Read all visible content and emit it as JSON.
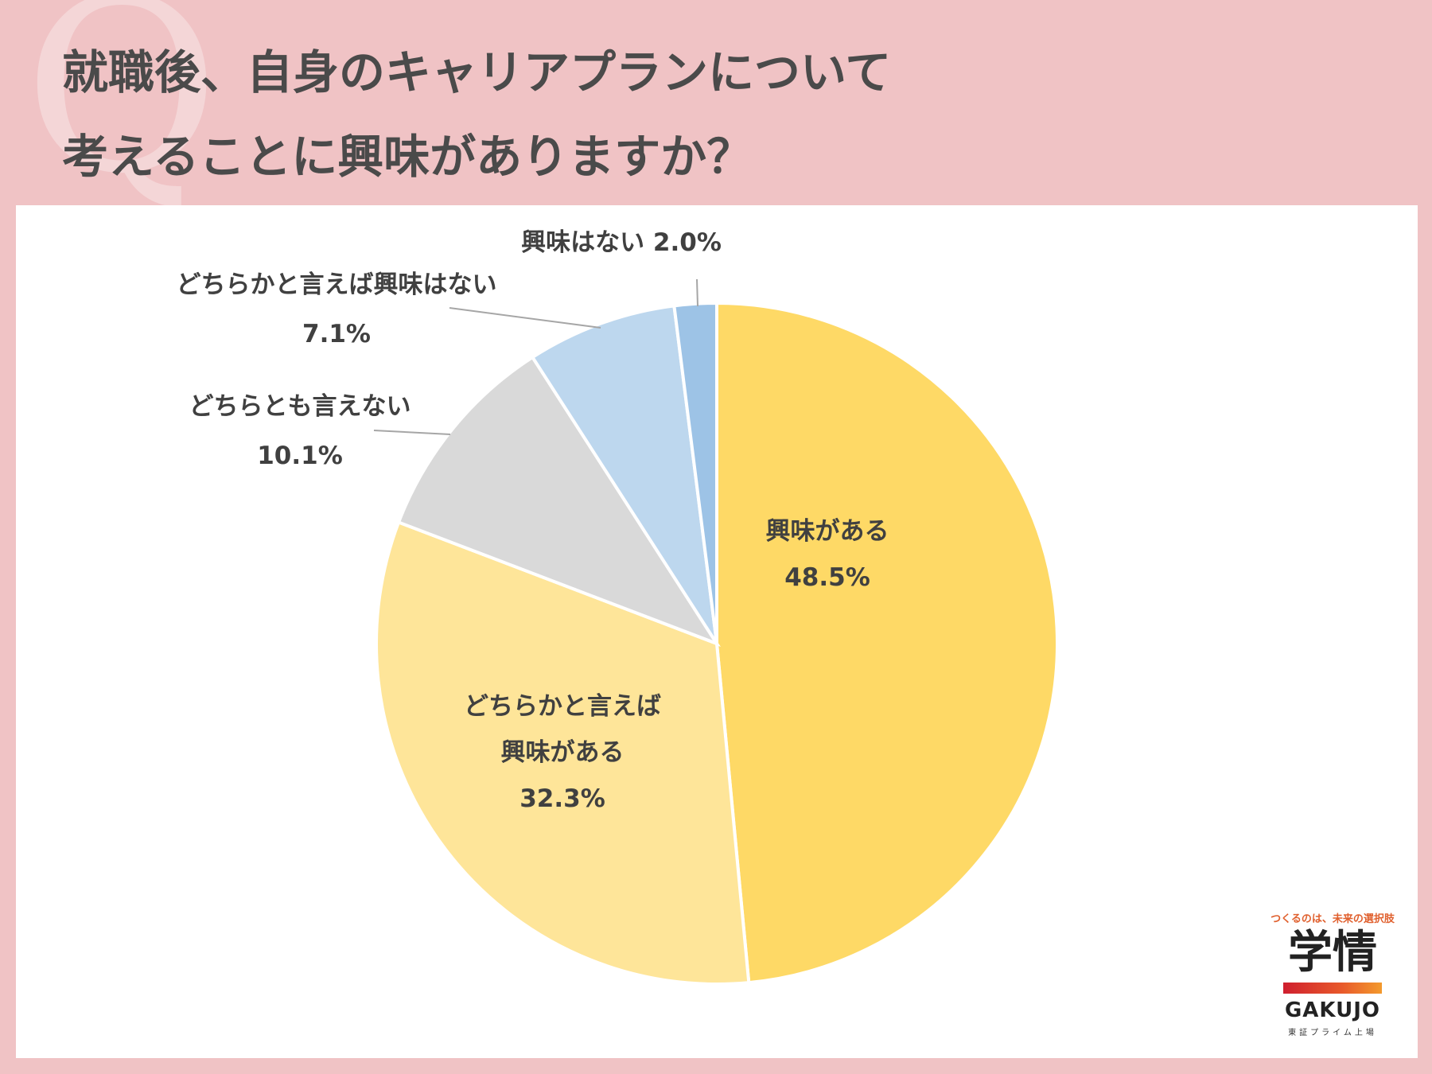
{
  "title": {
    "line1": "就職後、自身のキャリアプランについて",
    "line2": "考えることに興味がありますか？"
  },
  "decoration": {
    "q_mark": "Q"
  },
  "chart_data": {
    "type": "pie",
    "start_angle_deg": 0,
    "direction": "clockwise",
    "slices": [
      {
        "name": "興味がある",
        "label_lines": [
          "興味がある"
        ],
        "value": 48.5,
        "value_label": "48.5%",
        "color": "#fed966"
      },
      {
        "name": "どちらかと言えば興味がある",
        "label_lines": [
          "どちらかと言えば",
          "興味がある"
        ],
        "value": 32.3,
        "value_label": "32.3%",
        "color": "#fee599"
      },
      {
        "name": "どちらとも言えない",
        "label_lines": [
          "どちらとも言えない"
        ],
        "value": 10.1,
        "value_label": "10.1%",
        "color": "#d9d9d9"
      },
      {
        "name": "どちらかと言えば興味はない",
        "label_lines": [
          "どちらかと言えば興味はない"
        ],
        "value": 7.1,
        "value_label": "7.1%",
        "color": "#bdd7ee"
      },
      {
        "name": "興味はない",
        "label_lines": [
          "興味はない 2.0%"
        ],
        "value": 2.0,
        "value_label": "",
        "color": "#9dc3e6"
      }
    ]
  },
  "brand": {
    "slogan": "つくるのは、未来の選択肢",
    "name_kanji": "学情",
    "name_latin": "GAKUJO",
    "market": "東証プライム上場"
  }
}
